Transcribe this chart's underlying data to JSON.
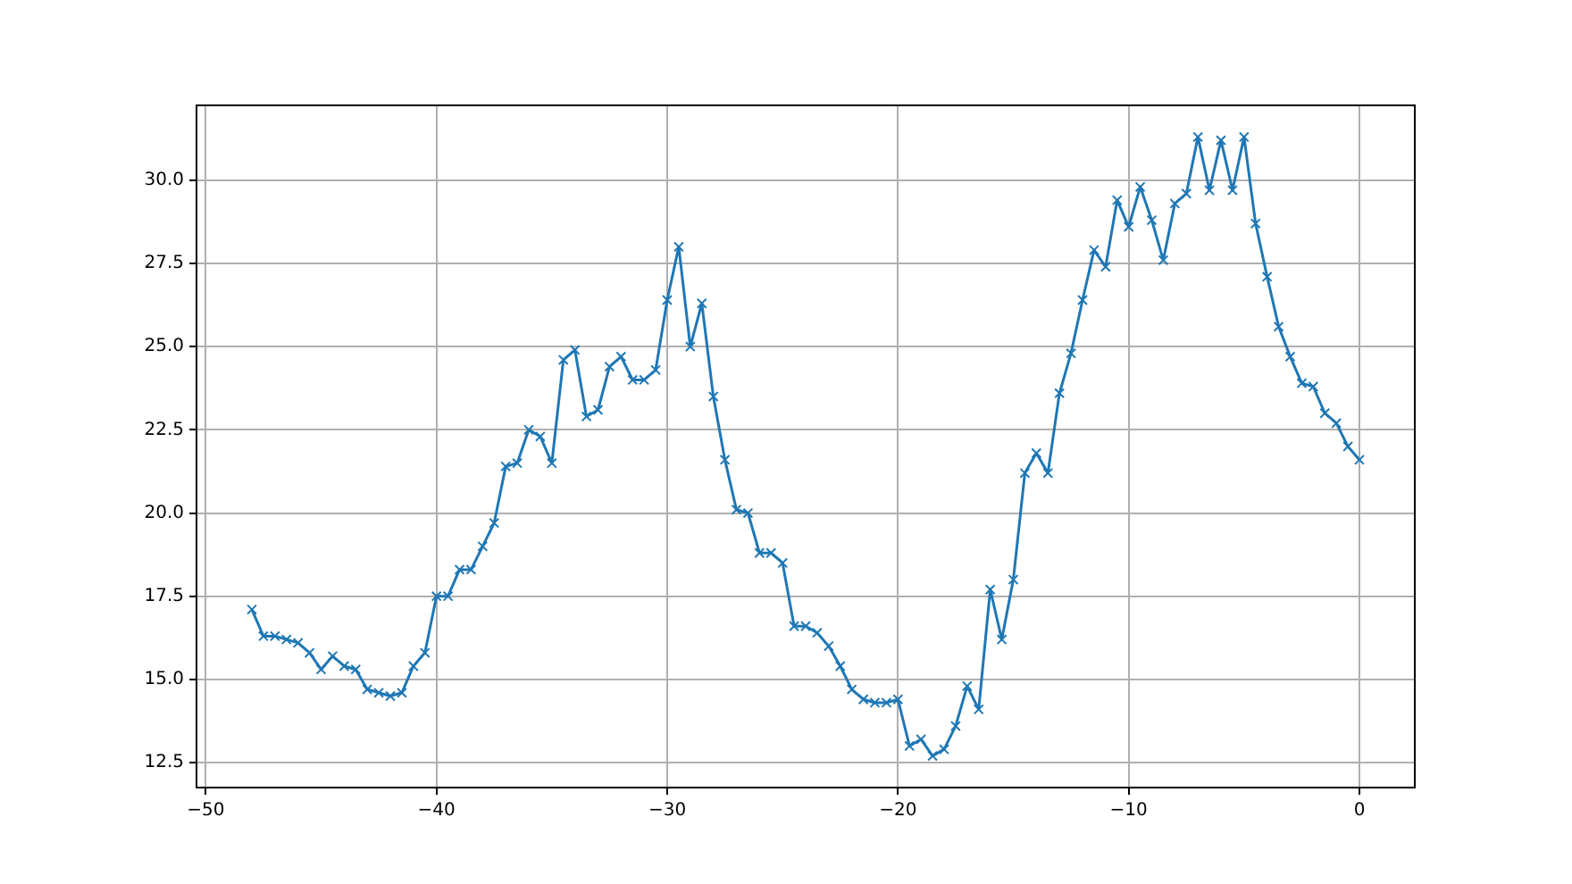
{
  "chart_data": {
    "type": "line",
    "x": [
      -48,
      -47.5,
      -47,
      -46.5,
      -46,
      -45.5,
      -45,
      -44.5,
      -44,
      -43.5,
      -43,
      -42.5,
      -42,
      -41.5,
      -41,
      -40.5,
      -40,
      -39.5,
      -39,
      -38.5,
      -38,
      -37.5,
      -37,
      -36.5,
      -36,
      -35.5,
      -35,
      -34.5,
      -34,
      -33.5,
      -33,
      -32.5,
      -32,
      -31.5,
      -31,
      -30.5,
      -30,
      -29.5,
      -29,
      -28.5,
      -28,
      -27.5,
      -27,
      -26.5,
      -26,
      -25.5,
      -25,
      -24.5,
      -24,
      -23.5,
      -23,
      -22.5,
      -22,
      -21.5,
      -21,
      -20.5,
      -20,
      -19.5,
      -19,
      -18.5,
      -18,
      -17.5,
      -17,
      -16.5,
      -16,
      -15.5,
      -15,
      -14.5,
      -14,
      -13.5,
      -13,
      -12.5,
      -12,
      -11.5,
      -11,
      -10.5,
      -10,
      -9.5,
      -9,
      -8.5,
      -8,
      -7.5,
      -7,
      -6.5,
      -6,
      -5.5,
      -5,
      -4.5,
      -4,
      -3.5,
      -3,
      -2.5,
      -2,
      -1.5,
      -1,
      -0.5,
      0
    ],
    "series": [
      {
        "color": "#1f77b4",
        "values": [
          17.1,
          16.3,
          16.3,
          16.2,
          16.1,
          15.8,
          15.3,
          15.7,
          15.4,
          15.3,
          14.7,
          14.6,
          14.5,
          14.6,
          15.4,
          15.8,
          17.5,
          17.5,
          18.3,
          18.3,
          19.0,
          19.7,
          21.4,
          21.5,
          22.5,
          22.3,
          21.5,
          24.6,
          24.9,
          22.9,
          23.1,
          24.4,
          24.7,
          24.0,
          24.0,
          24.3,
          26.4,
          28.0,
          25.0,
          26.3,
          23.5,
          21.6,
          20.1,
          20.0,
          18.8,
          18.8,
          18.5,
          16.6,
          16.6,
          16.4,
          16.0,
          15.4,
          14.7,
          14.4,
          14.3,
          14.3,
          14.4,
          13.0,
          13.2,
          12.7,
          12.9,
          13.6,
          14.8,
          14.1,
          17.7,
          16.2,
          18.0,
          21.2,
          21.8,
          21.2,
          23.6,
          24.8,
          26.4,
          27.9,
          27.4,
          29.4,
          28.6,
          29.8,
          28.8,
          27.6,
          29.3,
          29.6,
          31.3,
          29.7,
          31.2,
          29.7,
          31.3,
          28.7,
          27.1,
          25.6,
          24.7,
          23.9,
          23.8,
          23.0,
          22.7,
          22.0,
          21.6
        ]
      }
    ],
    "xlim": [
      -50.4,
      2.4
    ],
    "ylim": [
      11.75,
      32.25
    ],
    "xticks": [
      {
        "value": -50,
        "label": "−50"
      },
      {
        "value": -40,
        "label": "−40"
      },
      {
        "value": -30,
        "label": "−30"
      },
      {
        "value": -20,
        "label": "−20"
      },
      {
        "value": -10,
        "label": "−10"
      },
      0
    ],
    "yticks": [
      12.5,
      {
        "value": 15,
        "label": "15.0"
      },
      17.5,
      {
        "value": 20,
        "label": "20.0"
      },
      22.5,
      {
        "value": 25,
        "label": "25.0"
      },
      27.5,
      {
        "value": 30,
        "label": "30.0"
      }
    ],
    "grid": true,
    "marker": "cross",
    "line_style": "solid",
    "legend": false
  }
}
